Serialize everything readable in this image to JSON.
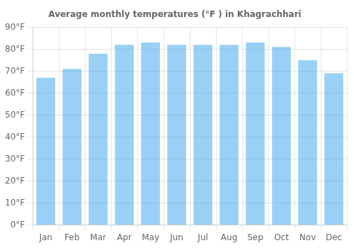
{
  "chart_data": {
    "type": "bar",
    "title": "Average monthly temperatures (°F ) in Khagrachhari",
    "categories": [
      "Jan",
      "Feb",
      "Mar",
      "Apr",
      "May",
      "Jun",
      "Jul",
      "Aug",
      "Sep",
      "Oct",
      "Nov",
      "Dec"
    ],
    "values": [
      67,
      71,
      78,
      82,
      83,
      82,
      82,
      82,
      83,
      81,
      75,
      69
    ],
    "ylim": [
      0,
      90
    ],
    "yticks": [
      {
        "value": 0,
        "label": "0°F"
      },
      {
        "value": 10,
        "label": "10°F"
      },
      {
        "value": 20,
        "label": "20°F"
      },
      {
        "value": 30,
        "label": "30°F"
      },
      {
        "value": 40,
        "label": "40°F"
      },
      {
        "value": 50,
        "label": "50°F"
      },
      {
        "value": 60,
        "label": "60°F"
      },
      {
        "value": 70,
        "label": "70°F"
      },
      {
        "value": 80,
        "label": "80°F"
      },
      {
        "value": 90,
        "label": "90°F"
      }
    ],
    "grid": true
  }
}
